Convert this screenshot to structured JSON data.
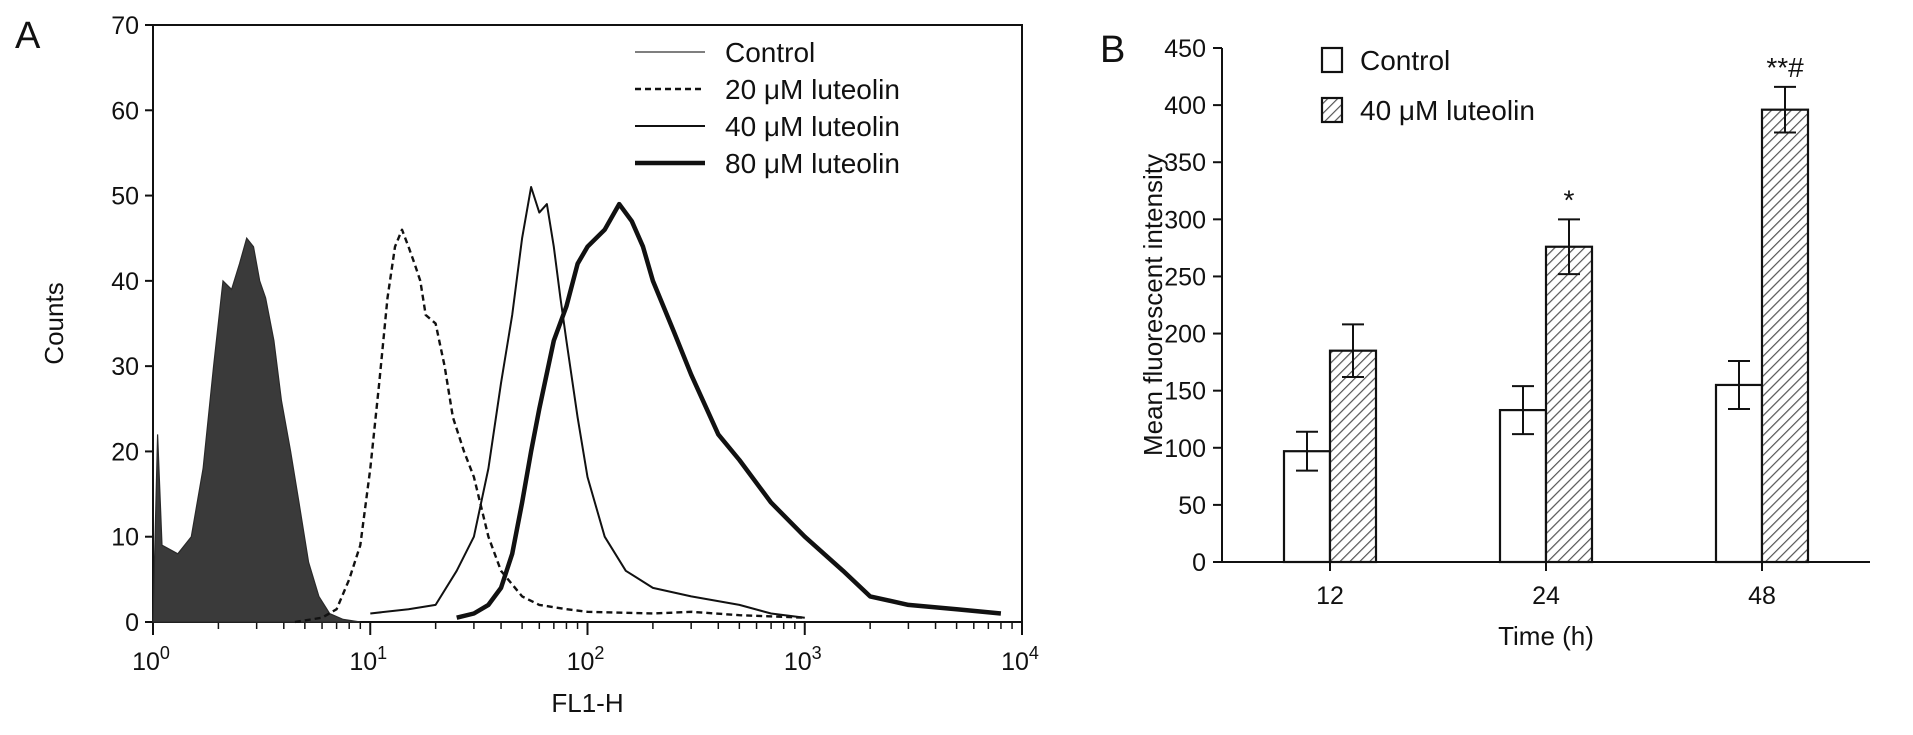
{
  "chart_data": [
    {
      "panel": "A",
      "type": "line",
      "xscale": "log",
      "xlim": [
        1,
        10000
      ],
      "ylim": [
        0,
        70
      ],
      "xlabel": "FL1-H",
      "ylabel": "Counts",
      "xticks": [
        {
          "base": "10",
          "exp": "0"
        },
        {
          "base": "10",
          "exp": "1"
        },
        {
          "base": "10",
          "exp": "2"
        },
        {
          "base": "10",
          "exp": "3"
        },
        {
          "base": "10",
          "exp": "4"
        }
      ],
      "yticks": [
        "0",
        "10",
        "20",
        "30",
        "40",
        "50",
        "60",
        "70"
      ],
      "legend_position": "top-right",
      "colors": {
        "fill": "#3a3a3a",
        "line": "#111111",
        "thin": "#555555"
      },
      "series": [
        {
          "name": "Control",
          "style": "thin",
          "points": [
            [
              1,
              0
            ],
            [
              1.05,
              22
            ],
            [
              1.1,
              9
            ],
            [
              1.3,
              8
            ],
            [
              1.5,
              10
            ],
            [
              1.7,
              18
            ],
            [
              1.9,
              30
            ],
            [
              2.1,
              40
            ],
            [
              2.3,
              39
            ],
            [
              2.5,
              42
            ],
            [
              2.7,
              45
            ],
            [
              2.9,
              44
            ],
            [
              3.1,
              40
            ],
            [
              3.3,
              38
            ],
            [
              3.6,
              33
            ],
            [
              3.9,
              26
            ],
            [
              4.3,
              20
            ],
            [
              4.7,
              14
            ],
            [
              5.2,
              7
            ],
            [
              5.8,
              3
            ],
            [
              6.5,
              1
            ],
            [
              7.5,
              0.3
            ],
            [
              9,
              0
            ]
          ]
        },
        {
          "name": "20 μM luteolin",
          "style": "dashed",
          "points": [
            [
              4.5,
              0
            ],
            [
              6,
              0.5
            ],
            [
              7,
              1.5
            ],
            [
              8,
              5
            ],
            [
              9,
              9
            ],
            [
              10,
              18
            ],
            [
              11,
              28
            ],
            [
              12,
              38
            ],
            [
              13,
              44
            ],
            [
              14,
              46
            ],
            [
              15,
              44
            ],
            [
              16,
              42
            ],
            [
              17,
              40
            ],
            [
              18,
              36
            ],
            [
              20,
              35
            ],
            [
              22,
              30
            ],
            [
              24,
              24
            ],
            [
              27,
              20
            ],
            [
              30,
              17
            ],
            [
              35,
              10
            ],
            [
              40,
              6
            ],
            [
              50,
              3
            ],
            [
              60,
              2
            ],
            [
              80,
              1.5
            ],
            [
              100,
              1.2
            ],
            [
              200,
              1
            ],
            [
              300,
              1.2
            ],
            [
              500,
              0.8
            ],
            [
              1000,
              0.5
            ]
          ]
        },
        {
          "name": "40 μM luteolin",
          "style": "solid",
          "points": [
            [
              10,
              1
            ],
            [
              15,
              1.5
            ],
            [
              20,
              2
            ],
            [
              25,
              6
            ],
            [
              30,
              10
            ],
            [
              35,
              18
            ],
            [
              40,
              28
            ],
            [
              45,
              36
            ],
            [
              50,
              45
            ],
            [
              55,
              51
            ],
            [
              60,
              48
            ],
            [
              65,
              49
            ],
            [
              70,
              44
            ],
            [
              75,
              38
            ],
            [
              80,
              33
            ],
            [
              90,
              24
            ],
            [
              100,
              17
            ],
            [
              120,
              10
            ],
            [
              150,
              6
            ],
            [
              200,
              4
            ],
            [
              300,
              3
            ],
            [
              500,
              2
            ],
            [
              700,
              1
            ],
            [
              1000,
              0.5
            ]
          ]
        },
        {
          "name": "80 μM luteolin",
          "style": "thick",
          "points": [
            [
              25,
              0.5
            ],
            [
              30,
              1
            ],
            [
              35,
              2
            ],
            [
              40,
              4
            ],
            [
              45,
              8
            ],
            [
              50,
              14
            ],
            [
              55,
              20
            ],
            [
              60,
              25
            ],
            [
              70,
              33
            ],
            [
              80,
              37
            ],
            [
              90,
              42
            ],
            [
              100,
              44
            ],
            [
              120,
              46
            ],
            [
              140,
              49
            ],
            [
              160,
              47
            ],
            [
              180,
              44
            ],
            [
              200,
              40
            ],
            [
              250,
              34
            ],
            [
              300,
              29
            ],
            [
              400,
              22
            ],
            [
              500,
              19
            ],
            [
              700,
              14
            ],
            [
              1000,
              10
            ],
            [
              1500,
              6
            ],
            [
              2000,
              3
            ],
            [
              3000,
              2
            ],
            [
              5000,
              1.5
            ],
            [
              8000,
              1
            ]
          ]
        }
      ]
    },
    {
      "panel": "B",
      "type": "bar",
      "categories": [
        "12",
        "24",
        "48"
      ],
      "xlabel": "Time (h)",
      "ylabel": "Mean fluorescent intensity",
      "ylim": [
        0,
        450
      ],
      "yticks": [
        "0",
        "50",
        "100",
        "150",
        "200",
        "250",
        "300",
        "350",
        "400",
        "450"
      ],
      "legend_position": "top-left",
      "series": [
        {
          "name": "Control",
          "values": [
            97,
            133,
            155
          ],
          "errors": [
            17,
            21,
            21
          ],
          "fill": "white"
        },
        {
          "name": "40 μM luteolin",
          "values": [
            185,
            276,
            396
          ],
          "errors": [
            23,
            24,
            20
          ],
          "fill": "hatched"
        }
      ],
      "annotations": [
        {
          "category": "24",
          "series": "40 μM luteolin",
          "text": "*"
        },
        {
          "category": "48",
          "series": "40 μM luteolin",
          "text": "**#"
        }
      ]
    }
  ]
}
